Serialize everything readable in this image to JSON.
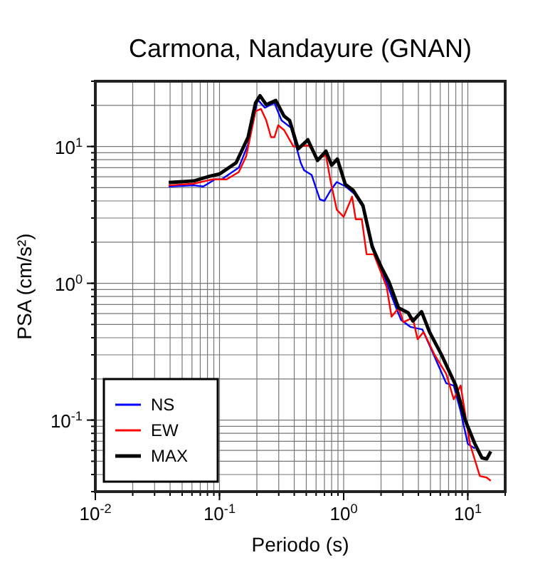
{
  "chart_data": {
    "type": "line",
    "title": "Carmona, Nandayure (GNAN)",
    "xlabel": "Periodo (s)",
    "ylabel": "PSA (cm/s²)",
    "log": "xy",
    "grid": true,
    "legend": "bottom left",
    "line_style": "solid",
    "xlim": [
      0.01,
      20
    ],
    "ylim": [
      0.03,
      30
    ],
    "xticks": [
      {
        "value": 0.01,
        "label": "10$^{-2}$"
      },
      {
        "value": 0.1,
        "label": "10$^{-1}$"
      },
      {
        "value": 1,
        "label": "10$^{0}$"
      },
      {
        "value": 10,
        "label": "10$^{1}$"
      }
    ],
    "yticks": [
      {
        "value": 0.1,
        "label": "10$^{-1}$"
      },
      {
        "value": 1,
        "label": "10$^{0}$"
      },
      {
        "value": 10,
        "label": "10$^{1}$"
      }
    ],
    "series": [
      {
        "name": "NS",
        "color": "#0000ff",
        "x": [
          0.039,
          0.062,
          0.074,
          0.092,
          0.104,
          0.143,
          0.17,
          0.203,
          0.232,
          0.277,
          0.316,
          0.377,
          0.451,
          0.48,
          0.552,
          0.643,
          0.7,
          0.787,
          0.88,
          1.04,
          1.22,
          1.43,
          1.63,
          2.03,
          2.65,
          2.9,
          3.45,
          4.3,
          5.15,
          6.7,
          7.7,
          8.75,
          10,
          11.4
        ],
        "values": [
          5.1,
          5.2,
          5.1,
          5.75,
          5.75,
          7.0,
          10.4,
          22,
          19.2,
          20.8,
          15.5,
          13.7,
          7.6,
          6.7,
          6.2,
          4.1,
          4.0,
          4.8,
          5.5,
          5.1,
          4.5,
          3.6,
          2.15,
          1.24,
          0.66,
          0.54,
          0.48,
          0.46,
          0.32,
          0.186,
          0.179,
          0.116,
          0.067,
          0.062
        ]
      },
      {
        "name": "EW",
        "color": "#ff0000",
        "x": [
          0.039,
          0.062,
          0.088,
          0.114,
          0.143,
          0.164,
          0.195,
          0.216,
          0.238,
          0.26,
          0.277,
          0.297,
          0.331,
          0.394,
          0.43,
          0.524,
          0.616,
          0.72,
          0.787,
          0.88,
          1.0,
          1.17,
          1.25,
          1.4,
          1.53,
          1.75,
          2.22,
          2.43,
          2.77,
          3.03,
          3.6,
          3.94,
          4.4,
          5.4,
          6.7,
          7.7,
          8.75,
          10.4,
          12.5,
          14.2,
          15.3
        ],
        "values": [
          5.2,
          5.35,
          5.75,
          5.75,
          6.5,
          8.5,
          18.1,
          18.8,
          15.5,
          11.7,
          11.7,
          14.3,
          13.2,
          10,
          10,
          10.2,
          8.2,
          8.6,
          5.5,
          3.45,
          3.06,
          4.3,
          2.94,
          2.94,
          1.63,
          1.63,
          0.94,
          0.57,
          0.66,
          0.52,
          0.56,
          0.39,
          0.44,
          0.3,
          0.218,
          0.142,
          0.179,
          0.067,
          0.039,
          0.038,
          0.036
        ]
      },
      {
        "name": "MAX",
        "color": "#000000",
        "x": [
          0.039,
          0.062,
          0.08,
          0.1,
          0.136,
          0.17,
          0.195,
          0.212,
          0.238,
          0.284,
          0.331,
          0.367,
          0.43,
          0.515,
          0.616,
          0.72,
          0.8,
          0.89,
          1.03,
          1.19,
          1.43,
          1.7,
          2.03,
          2.32,
          2.77,
          3.3,
          3.61,
          4.24,
          4.92,
          6.14,
          8.0,
          9.56,
          11.4,
          13.0,
          14.2,
          15.3
        ],
        "values": [
          5.45,
          5.6,
          6.0,
          6.3,
          7.6,
          11.7,
          20.8,
          23.5,
          20.2,
          21.7,
          16.7,
          15.5,
          9.6,
          11.2,
          7.9,
          9.25,
          7.3,
          8.1,
          5.3,
          4.8,
          3.7,
          1.84,
          1.29,
          1.02,
          0.66,
          0.61,
          0.53,
          0.62,
          0.44,
          0.3,
          0.179,
          0.099,
          0.067,
          0.053,
          0.052,
          0.059
        ]
      }
    ]
  }
}
